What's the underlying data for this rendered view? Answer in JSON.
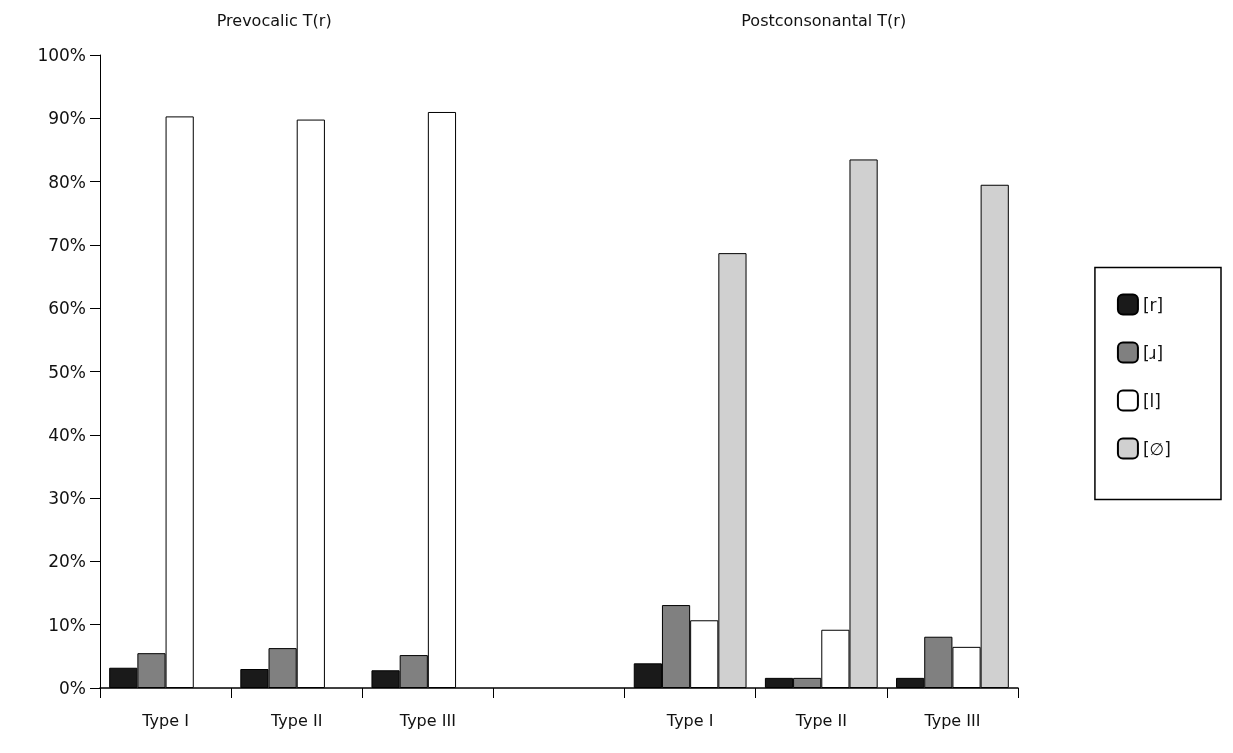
{
  "chart_data": {
    "type": "bar",
    "categories": [
      "Type I",
      "Type II",
      "Type III",
      null,
      "Type I",
      "Type II",
      "Type III"
    ],
    "series": [
      {
        "name": "[r]",
        "color": "#1a1a1a",
        "values": [
          3.2,
          3.0,
          2.8,
          null,
          3.9,
          1.6,
          1.6
        ]
      },
      {
        "name": "[ɹ]",
        "color": "#808080",
        "values": [
          5.5,
          6.3,
          5.2,
          null,
          13.1,
          1.6,
          8.1
        ]
      },
      {
        "name": "[l]",
        "color": "#ffffff",
        "values": [
          90.3,
          89.8,
          91,
          null,
          10.7,
          9.2,
          6.5
        ]
      },
      {
        "name": "[∅]",
        "color": "#d0d0d0",
        "values": [
          null,
          null,
          null,
          null,
          68.7,
          83.5,
          79.5
        ]
      }
    ],
    "annotations": [
      "Prevocalic T(r)",
      "Postconsonantal T(r)"
    ],
    "ylim": [
      0,
      100
    ],
    "yticks": [
      {
        "value": 0,
        "label": "0%"
      },
      {
        "value": 10,
        "label": "10%"
      },
      {
        "value": 20,
        "label": "20%"
      },
      {
        "value": 30,
        "label": "30%"
      },
      {
        "value": 40,
        "label": "40%"
      },
      {
        "value": 50,
        "label": "50%"
      },
      {
        "value": 60,
        "label": "60%"
      },
      {
        "value": 70,
        "label": "70%"
      },
      {
        "value": 80,
        "label": "80%"
      },
      {
        "value": 90,
        "label": "90%"
      },
      {
        "value": 100,
        "label": "100%"
      }
    ],
    "grid": false,
    "legend": "right"
  }
}
